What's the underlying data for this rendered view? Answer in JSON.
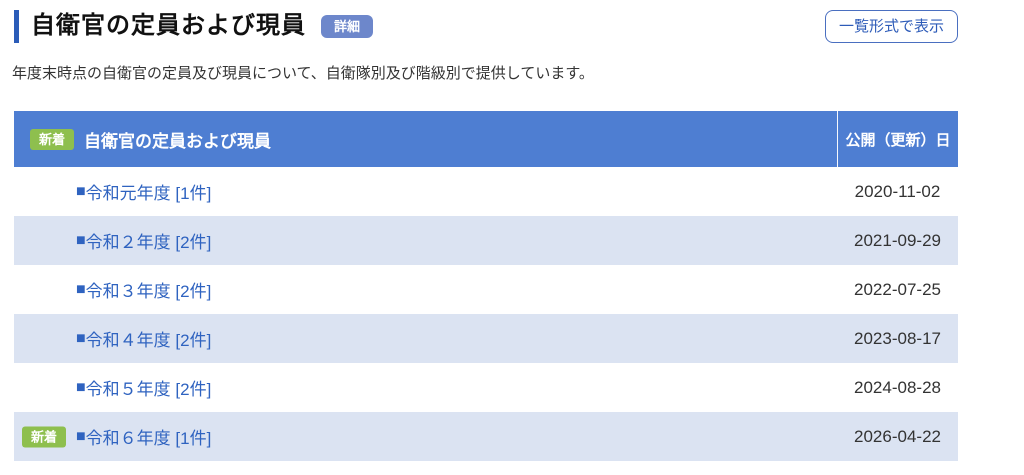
{
  "page": {
    "title": "自衛官の定員および現員",
    "detail_badge_label": "詳細",
    "list_view_button_label": "一覧形式で表示",
    "description": "年度末時点の自衛官の定員及び現員について、自衛隊別及び階級別で提供しています。"
  },
  "table": {
    "bullet": "■",
    "new_badge_label": "新着",
    "header": {
      "title": "自衛官の定員および現員",
      "date_column": "公開（更新）日"
    },
    "rows": [
      {
        "label": "令和元年度 [1件]",
        "date": "2020-11-02",
        "new": false
      },
      {
        "label": "令和２年度 [2件]",
        "date": "2021-09-29",
        "new": false
      },
      {
        "label": "令和３年度 [2件]",
        "date": "2022-07-25",
        "new": false
      },
      {
        "label": "令和４年度 [2件]",
        "date": "2023-08-17",
        "new": false
      },
      {
        "label": "令和５年度 [2件]",
        "date": "2024-08-28",
        "new": false
      },
      {
        "label": "令和６年度 [1件]",
        "date": "2026-04-22",
        "new": true
      }
    ],
    "colors": {
      "header_bg": "#4e7ed2",
      "alt_row_bg": "#dbe3f2",
      "new_badge_bg": "#8ebf4e",
      "link": "#2f63c0",
      "detail_badge_bg": "#6d87cb",
      "title_bar": "#2b5cb8",
      "button_border": "#4a6fc0"
    }
  }
}
